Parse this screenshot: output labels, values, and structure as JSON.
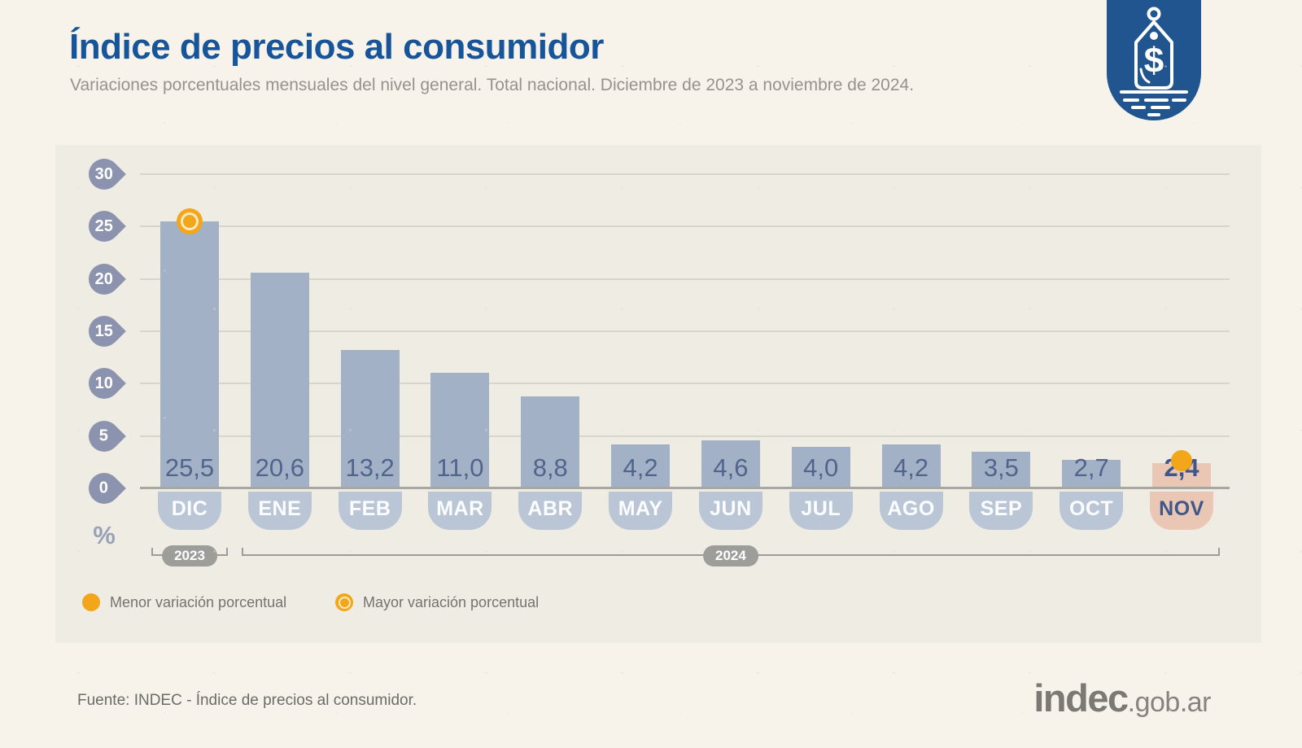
{
  "header": {
    "title": "Índice de precios al consumidor",
    "subtitle": "Variaciones porcentuales mensuales del nivel general. Total nacional. Diciembre de 2023 a noviembre de 2024."
  },
  "badge": {
    "icon": "price-tag-icon",
    "symbol": "$"
  },
  "chart_data": {
    "type": "bar",
    "title": "Índice de precios al consumidor",
    "subtitle": "Variaciones porcentuales mensuales del nivel general. Total nacional. Diciembre de 2023 a noviembre de 2024.",
    "unit": "%",
    "categories": [
      "DIC",
      "ENE",
      "FEB",
      "MAR",
      "ABR",
      "MAY",
      "JUN",
      "JUL",
      "AGO",
      "SEP",
      "OCT",
      "NOV"
    ],
    "values": [
      25.5,
      20.6,
      13.2,
      11.0,
      8.8,
      4.2,
      4.6,
      4.0,
      4.2,
      3.5,
      2.7,
      2.4
    ],
    "value_labels": [
      "25,5",
      "20,6",
      "13,2",
      "11,0",
      "8,8",
      "4,2",
      "4,6",
      "4,0",
      "4,2",
      "3,5",
      "2,7",
      "2,4"
    ],
    "ylim": [
      0,
      30
    ],
    "y_ticks": [
      0,
      5,
      10,
      15,
      20,
      25,
      30
    ],
    "y_axis_unit_label": "%",
    "grid": true,
    "legend_position": "bottom-left",
    "year_groups": [
      {
        "label": "2023",
        "start": "DIC",
        "end": "DIC"
      },
      {
        "label": "2024",
        "start": "ENE",
        "end": "NOV"
      }
    ],
    "highlight_max": {
      "category": "DIC",
      "value": 25.5,
      "marker": "ring"
    },
    "highlight_min": {
      "category": "NOV",
      "value": 2.4,
      "marker": "dot"
    },
    "legend": [
      {
        "marker": "dot",
        "label": "Menor variación porcentual"
      },
      {
        "marker": "ring",
        "label": "Mayor variación porcentual"
      }
    ],
    "colors": {
      "bar": "#a3b1c6",
      "month_tab": "#bac6d6",
      "highlight_bar": "#e9c7b4",
      "accent_orange": "#f2a71b",
      "value_text": "#51658c",
      "highlight_text": "#3f568b",
      "axis_marker": "#8b93ae",
      "title_blue": "#17559a",
      "badge_blue": "#21558f"
    }
  },
  "footer": {
    "source": "Fuente: INDEC - Índice de precios al consumidor.",
    "logo_main": "indec",
    "logo_suffix": ".gob.ar"
  }
}
